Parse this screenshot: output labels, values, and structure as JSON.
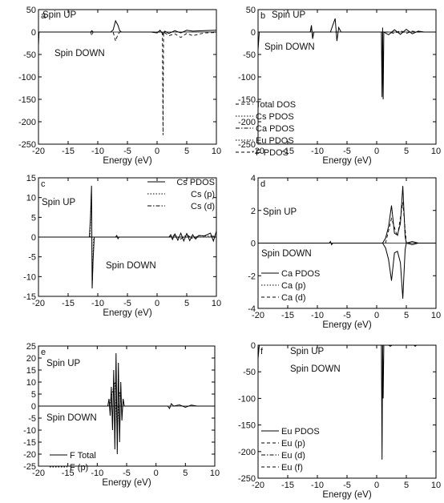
{
  "figure": {
    "xlabel": "Energy (eV)"
  },
  "chart_data": [
    {
      "panel": "a",
      "type": "line",
      "labels": [
        "Spin UP",
        "Spin DOWN"
      ],
      "xlim": [
        -20,
        10
      ],
      "ylim": [
        -250,
        50
      ],
      "xticks": [
        -20,
        -15,
        -10,
        -5,
        0,
        5,
        10
      ],
      "yticks": [
        -250,
        -200,
        -150,
        -100,
        -50,
        0,
        50
      ],
      "xlabel": "Energy (eV)",
      "series": [
        {
          "style": "solid",
          "points": [
            [
              -20,
              -30
            ],
            [
              -19.9,
              0
            ],
            [
              -11.2,
              0
            ],
            [
              -11,
              3
            ],
            [
              -10.8,
              0
            ],
            [
              -7.8,
              0
            ],
            [
              -7.4,
              5
            ],
            [
              -7,
              25
            ],
            [
              -6.6,
              15
            ],
            [
              -6.3,
              3
            ],
            [
              -6,
              0
            ],
            [
              -1,
              0
            ],
            [
              0,
              -2
            ],
            [
              0.5,
              4
            ],
            [
              1,
              -5
            ],
            [
              1.3,
              2
            ],
            [
              2,
              -3
            ],
            [
              3,
              3
            ],
            [
              4,
              -2
            ],
            [
              5,
              4
            ],
            [
              6,
              2
            ],
            [
              8,
              3
            ],
            [
              10,
              4
            ]
          ]
        },
        {
          "style": "dashed",
          "points": [
            [
              -11.2,
              0
            ],
            [
              -11,
              -8
            ],
            [
              -10.8,
              0
            ],
            [
              -7.4,
              0
            ],
            [
              -7,
              -20
            ],
            [
              -6.6,
              -5
            ],
            [
              -6.3,
              0
            ],
            [
              0.9,
              0
            ],
            [
              1,
              -230
            ],
            [
              1.1,
              0
            ],
            [
              2,
              -8
            ],
            [
              3,
              -4
            ],
            [
              4,
              -12
            ],
            [
              5,
              -3
            ],
            [
              6,
              -8
            ],
            [
              8,
              -2
            ],
            [
              10,
              -1
            ]
          ]
        }
      ]
    },
    {
      "panel": "b",
      "type": "line",
      "labels": [
        "Spin UP",
        "Spin DOWN"
      ],
      "xlim": [
        -20,
        10
      ],
      "ylim": [
        -250,
        50
      ],
      "xticks": [
        -20,
        -15,
        -10,
        -5,
        0,
        5,
        10
      ],
      "yticks": [
        -250,
        -200,
        -150,
        -100,
        -50,
        0,
        50
      ],
      "xlabel": "Energy (eV)",
      "legend": [
        "Total DOS",
        "Cs PDOS",
        "Ca PDOS",
        "Eu PDOS",
        "F PDOS"
      ],
      "legend_position": "lower-left",
      "series": [
        {
          "style": "solid",
          "points": [
            [
              -20,
              -40
            ],
            [
              -19.8,
              0
            ],
            [
              -11.2,
              0
            ],
            [
              -11,
              15
            ],
            [
              -10.8,
              -15
            ],
            [
              -10.6,
              0
            ],
            [
              -7.8,
              0
            ],
            [
              -7.4,
              15
            ],
            [
              -7,
              30
            ],
            [
              -6.7,
              -20
            ],
            [
              -6.4,
              10
            ],
            [
              -6,
              0
            ],
            [
              0.8,
              0
            ],
            [
              0.9,
              -145
            ],
            [
              1,
              10
            ],
            [
              1.1,
              -150
            ],
            [
              1.2,
              0
            ],
            [
              2,
              -6
            ],
            [
              3,
              5
            ],
            [
              4,
              -5
            ],
            [
              5,
              6
            ],
            [
              6,
              -4
            ],
            [
              7,
              2
            ],
            [
              8,
              0
            ],
            [
              10,
              0
            ]
          ]
        },
        {
          "style": "dashed",
          "points": [
            [
              -11.2,
              0
            ],
            [
              -11,
              10
            ],
            [
              -10.8,
              -10
            ],
            [
              -10.6,
              0
            ],
            [
              2,
              0
            ],
            [
              3,
              -3
            ],
            [
              4,
              3
            ],
            [
              5,
              -3
            ],
            [
              6,
              2
            ],
            [
              7,
              0
            ],
            [
              10,
              0
            ]
          ]
        }
      ]
    },
    {
      "panel": "c",
      "type": "line",
      "labels": [
        "Spin UP",
        "Spin DOWN"
      ],
      "xlim": [
        -20,
        10
      ],
      "ylim": [
        -15,
        15
      ],
      "xticks": [
        -20,
        -15,
        -10,
        -5,
        0,
        5,
        10
      ],
      "yticks": [
        -15,
        -10,
        -5,
        0,
        5,
        10,
        15
      ],
      "xlabel": "Energy (eV)",
      "legend": [
        "Cs PDOS",
        "Cs (p)",
        "Cs (d)"
      ],
      "legend_position": "top-right",
      "series": [
        {
          "style": "solid",
          "points": [
            [
              -20,
              0
            ],
            [
              -11.4,
              0
            ],
            [
              -11.2,
              6
            ],
            [
              -11.05,
              13
            ],
            [
              -10.95,
              -13
            ],
            [
              -10.8,
              -6
            ],
            [
              -10.6,
              0
            ],
            [
              -7,
              0
            ],
            [
              -6.8,
              0.4
            ],
            [
              -6.6,
              -0.4
            ],
            [
              -6.4,
              0
            ],
            [
              2,
              0
            ],
            [
              2.3,
              0.6
            ],
            [
              2.6,
              -0.6
            ],
            [
              3,
              0.8
            ],
            [
              3.5,
              -0.8
            ],
            [
              4,
              1
            ],
            [
              4.5,
              -1
            ],
            [
              5,
              0.9
            ],
            [
              5.5,
              -0.9
            ],
            [
              6,
              0.6
            ],
            [
              6.5,
              -0.5
            ],
            [
              7,
              0.4
            ],
            [
              8,
              0.3
            ],
            [
              9,
              1
            ],
            [
              9.5,
              -1
            ],
            [
              10,
              1.5
            ]
          ]
        },
        {
          "style": "dotted",
          "points": [
            [
              -11.3,
              0
            ],
            [
              -11.1,
              11
            ],
            [
              -10.9,
              -11
            ],
            [
              -10.7,
              0
            ],
            [
              10,
              0
            ]
          ]
        },
        {
          "style": "dashdot",
          "points": [
            [
              -20,
              0
            ],
            [
              2,
              0
            ],
            [
              3,
              0.5
            ],
            [
              4,
              -0.5
            ],
            [
              5,
              0.6
            ],
            [
              6,
              -0.4
            ],
            [
              7,
              0.3
            ],
            [
              10,
              0.2
            ]
          ]
        }
      ]
    },
    {
      "panel": "d",
      "type": "line",
      "labels": [
        "Spin UP",
        "Spin DOWN"
      ],
      "xlim": [
        -20,
        10
      ],
      "ylim": [
        -4,
        4
      ],
      "xticks": [
        -20,
        -15,
        -10,
        -5,
        0,
        5,
        10
      ],
      "yticks": [
        -4,
        -2,
        0,
        2,
        4
      ],
      "xlabel": "Energy (eV)",
      "legend": [
        "Ca PDOS",
        "Ca (p)",
        "Ca (d)"
      ],
      "legend_position": "lower-left",
      "series": [
        {
          "style": "solid",
          "points": [
            [
              -20,
              0
            ],
            [
              -8,
              0
            ],
            [
              -7.8,
              0.1
            ],
            [
              -7.6,
              -0.1
            ],
            [
              -7.4,
              0
            ],
            [
              1,
              0
            ],
            [
              1.5,
              0.3
            ],
            [
              2,
              1
            ],
            [
              2.5,
              2.3
            ],
            [
              3,
              0.6
            ],
            [
              3.5,
              0.5
            ],
            [
              4,
              1.2
            ],
            [
              4.4,
              3.5
            ],
            [
              4.8,
              0.4
            ],
            [
              5,
              0
            ],
            [
              6,
              0.1
            ],
            [
              7,
              0
            ],
            [
              10,
              0
            ]
          ]
        },
        {
          "style": "solid",
          "points": [
            [
              1,
              0
            ],
            [
              1.5,
              -0.3
            ],
            [
              2,
              -1
            ],
            [
              2.5,
              -2.3
            ],
            [
              3,
              -0.6
            ],
            [
              3.5,
              -0.5
            ],
            [
              4,
              -1.2
            ],
            [
              4.4,
              -3.4
            ],
            [
              4.8,
              -0.4
            ],
            [
              5,
              0
            ],
            [
              6,
              -0.1
            ],
            [
              7,
              0
            ]
          ]
        },
        {
          "style": "dashed",
          "points": [
            [
              1.5,
              0
            ],
            [
              2.5,
              1.5
            ],
            [
              3.5,
              0.4
            ],
            [
              4.4,
              2.5
            ],
            [
              5,
              0
            ]
          ]
        }
      ]
    },
    {
      "panel": "e",
      "type": "line",
      "labels": [
        "Spin UP",
        "Spin DOWN"
      ],
      "xlim": [
        -20,
        10
      ],
      "ylim": [
        -25,
        25
      ],
      "xticks": [
        -20,
        -15,
        -10,
        -5,
        0,
        5,
        10
      ],
      "yticks": [
        -25,
        -20,
        -15,
        -10,
        -5,
        0,
        5,
        10,
        15,
        20,
        25
      ],
      "xlabel": "Energy (eV)",
      "legend": [
        "F Total",
        "F (p)"
      ],
      "legend_position": "lower-left",
      "series": [
        {
          "style": "solid",
          "points": [
            [
              -20,
              0
            ],
            [
              -10,
              0
            ],
            [
              -8.2,
              0
            ],
            [
              -8,
              3
            ],
            [
              -7.8,
              -4
            ],
            [
              -7.6,
              8
            ],
            [
              -7.4,
              -10
            ],
            [
              -7.2,
              15
            ],
            [
              -7.0,
              -18
            ],
            [
              -6.8,
              22
            ],
            [
              -6.6,
              -20
            ],
            [
              -6.4,
              18
            ],
            [
              -6.2,
              -15
            ],
            [
              -6.0,
              10
            ],
            [
              -5.8,
              -6
            ],
            [
              -5.6,
              3
            ],
            [
              -5.4,
              0
            ],
            [
              2,
              0
            ],
            [
              2.3,
              -1
            ],
            [
              2.6,
              1
            ],
            [
              3,
              0
            ],
            [
              4,
              0.5
            ],
            [
              5,
              -0.5
            ],
            [
              6,
              0.4
            ],
            [
              7,
              0
            ],
            [
              10,
              0
            ]
          ]
        },
        {
          "style": "dotted",
          "points": [
            [
              -8,
              0
            ],
            [
              -7.4,
              6
            ],
            [
              -7,
              10
            ],
            [
              -6.6,
              -10
            ],
            [
              -6.2,
              6
            ],
            [
              -5.8,
              0
            ]
          ]
        }
      ]
    },
    {
      "panel": "f",
      "type": "line",
      "labels": [
        "Spin UP",
        "Spin DOWN"
      ],
      "xlim": [
        -20,
        10
      ],
      "ylim": [
        -250,
        0
      ],
      "xticks": [
        -20,
        -15,
        -10,
        -5,
        0,
        5,
        10
      ],
      "yticks": [
        -250,
        -200,
        -150,
        -100,
        -50,
        0
      ],
      "xlabel": "Energy (eV)",
      "legend": [
        "Eu PDOS",
        "Eu (p)",
        "Eu (d)",
        "Eu (f)"
      ],
      "legend_position": "lower-left",
      "series": [
        {
          "style": "solid",
          "points": [
            [
              -20,
              -25
            ],
            [
              -19.8,
              0
            ],
            [
              0.8,
              0
            ],
            [
              0.9,
              -215
            ],
            [
              1,
              0
            ],
            [
              1.1,
              -100
            ],
            [
              1.2,
              0
            ],
            [
              2,
              0
            ],
            [
              2.3,
              -2
            ],
            [
              2.6,
              0
            ],
            [
              6.3,
              0
            ],
            [
              6.5,
              -2
            ],
            [
              6.7,
              0
            ],
            [
              10,
              0
            ]
          ]
        },
        {
          "style": "dashed",
          "points": [
            [
              -20,
              -10
            ],
            [
              -19.8,
              0
            ],
            [
              10,
              0
            ]
          ]
        }
      ]
    }
  ]
}
